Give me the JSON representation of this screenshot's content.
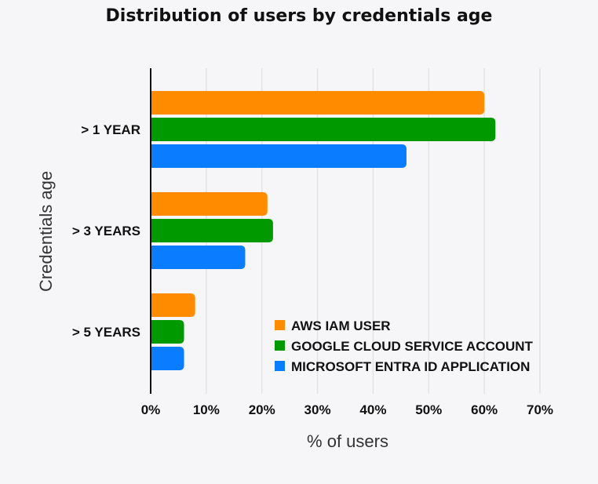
{
  "chart_data": {
    "type": "bar",
    "orientation": "horizontal",
    "title": "Distribution of users by credentials age",
    "xlabel": "% of users",
    "ylabel": "Credentials age",
    "categories": [
      "> 1 YEAR",
      "> 3 YEARS",
      "> 5 YEARS"
    ],
    "series": [
      {
        "name": "AWS IAM USER",
        "color": "#ff8c00",
        "values": [
          60,
          21,
          8
        ]
      },
      {
        "name": "GOOGLE CLOUD SERVICE ACCOUNT",
        "color": "#009900",
        "values": [
          62,
          22,
          6
        ]
      },
      {
        "name": "MICROSOFT ENTRA ID APPLICATION",
        "color": "#0a7cff",
        "values": [
          46,
          17,
          6
        ]
      }
    ],
    "xlim": [
      0,
      70
    ],
    "xticks": [
      "0%",
      "10%",
      "20%",
      "30%",
      "40%",
      "50%",
      "60%",
      "70%"
    ],
    "grid": true,
    "legend": "bottom-right"
  }
}
